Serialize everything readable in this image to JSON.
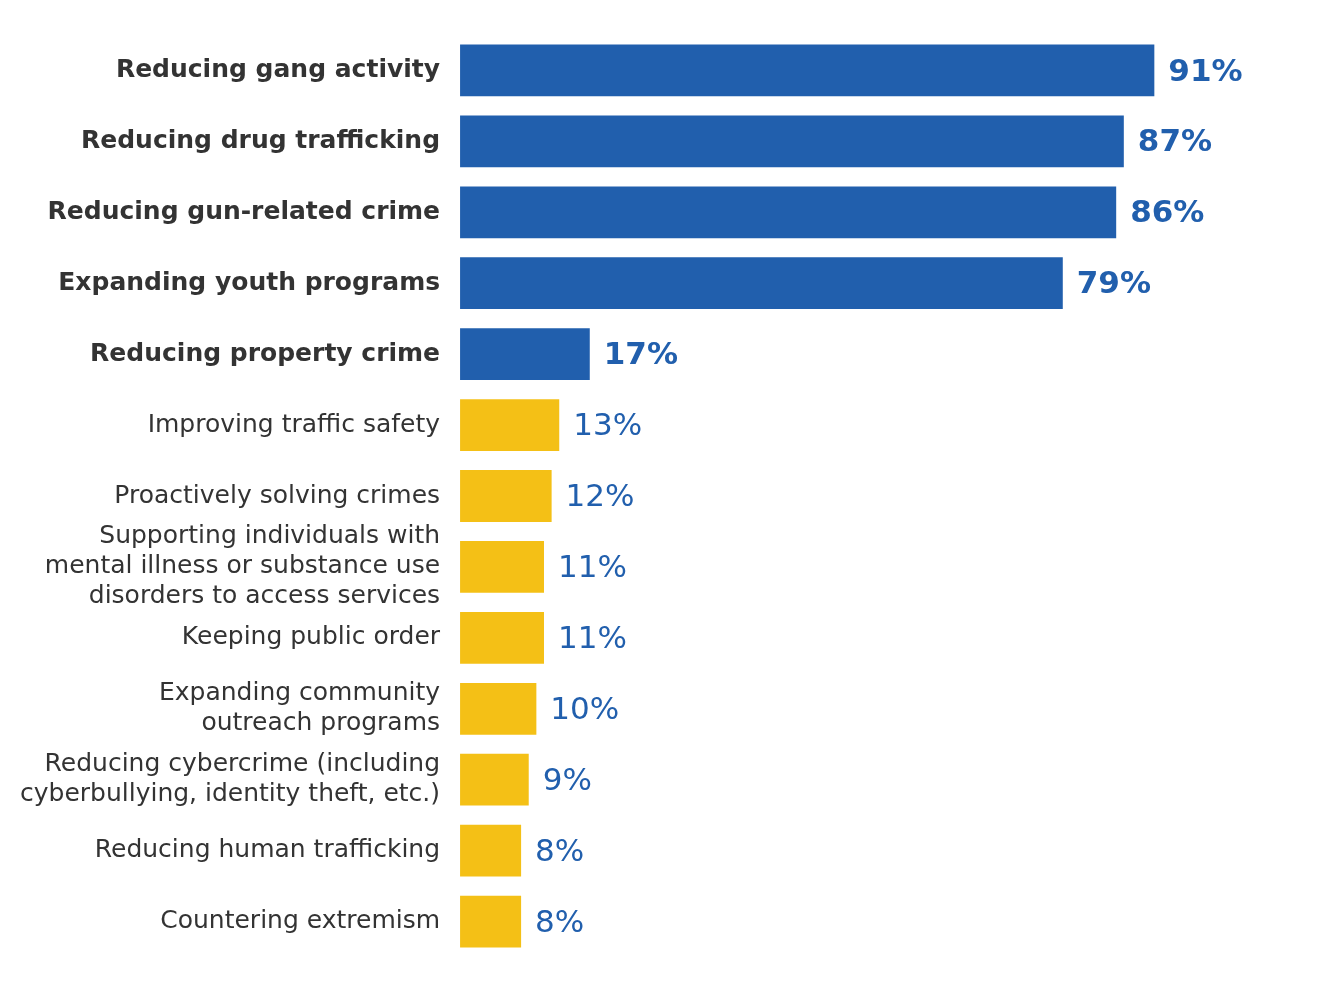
{
  "chart_data": {
    "type": "bar",
    "orientation": "horizontal",
    "categories": [
      "Reducing gang activity",
      "Reducing drug trafficking",
      "Reducing gun-related crime",
      "Expanding youth programs",
      "Reducing property crime",
      "Improving traffic safety",
      "Proactively solving crimes",
      "Supporting individuals with\nmental illness or substance use\ndisorders to access services",
      "Keeping public order",
      "Expanding community\noutreach programs",
      "Reducing cybercrime (including\ncyberbullying, identity theft, etc.)",
      "Reducing human trafficking",
      "Countering extremism"
    ],
    "values": [
      91,
      87,
      86,
      79,
      17,
      13,
      12,
      11,
      11,
      10,
      9,
      8,
      8
    ],
    "colors": [
      "#215fad",
      "#215fad",
      "#215fad",
      "#215fad",
      "#215fad",
      "#f4c016",
      "#f4c016",
      "#f4c016",
      "#f4c016",
      "#f4c016",
      "#f4c016",
      "#f4c016",
      "#f4c016"
    ],
    "value_labels": [
      "91%",
      "87%",
      "86%",
      "79%",
      "17%",
      "13%",
      "12%",
      "11%",
      "11%",
      "10%",
      "9%",
      "8%",
      "8%"
    ],
    "tick_labels": "y",
    "legend": false
  }
}
